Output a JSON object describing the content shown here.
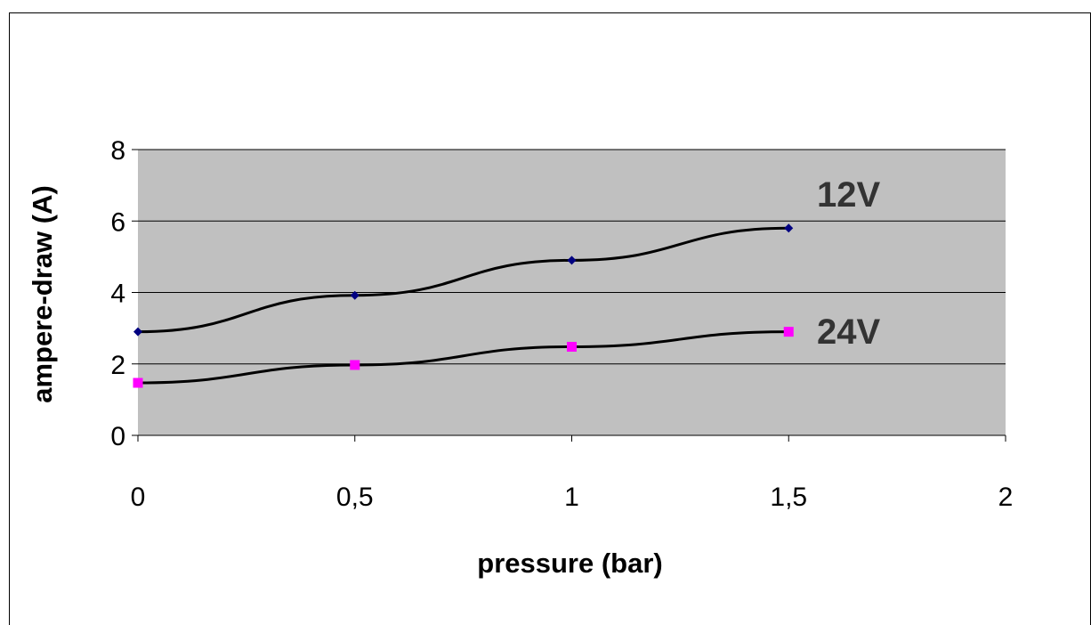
{
  "chart_data": {
    "type": "line",
    "title": "",
    "xlabel": "pressure (bar)",
    "ylabel": "ampere-draw (A)",
    "xlim": [
      0,
      2
    ],
    "ylim": [
      0,
      8
    ],
    "x_ticks": [
      0,
      0.5,
      1,
      1.5,
      2
    ],
    "x_tick_labels": [
      "0",
      "0,5",
      "1",
      "1,5",
      "2"
    ],
    "y_ticks": [
      0,
      2,
      4,
      6,
      8
    ],
    "y_tick_labels": [
      "0",
      "2",
      "4",
      "6",
      "8"
    ],
    "grid": true,
    "plot_background": "#c0c0c0",
    "series": [
      {
        "name": "12V",
        "marker": "diamond",
        "marker_color": "#000080",
        "line_color": "#000000",
        "x": [
          0,
          0.5,
          1,
          1.5
        ],
        "values": [
          2.9,
          3.92,
          4.9,
          5.8
        ]
      },
      {
        "name": "24V",
        "marker": "square",
        "marker_color": "#ff00ff",
        "line_color": "#000000",
        "x": [
          0,
          0.5,
          1,
          1.5
        ],
        "values": [
          1.47,
          1.97,
          2.48,
          2.9
        ]
      }
    ]
  }
}
